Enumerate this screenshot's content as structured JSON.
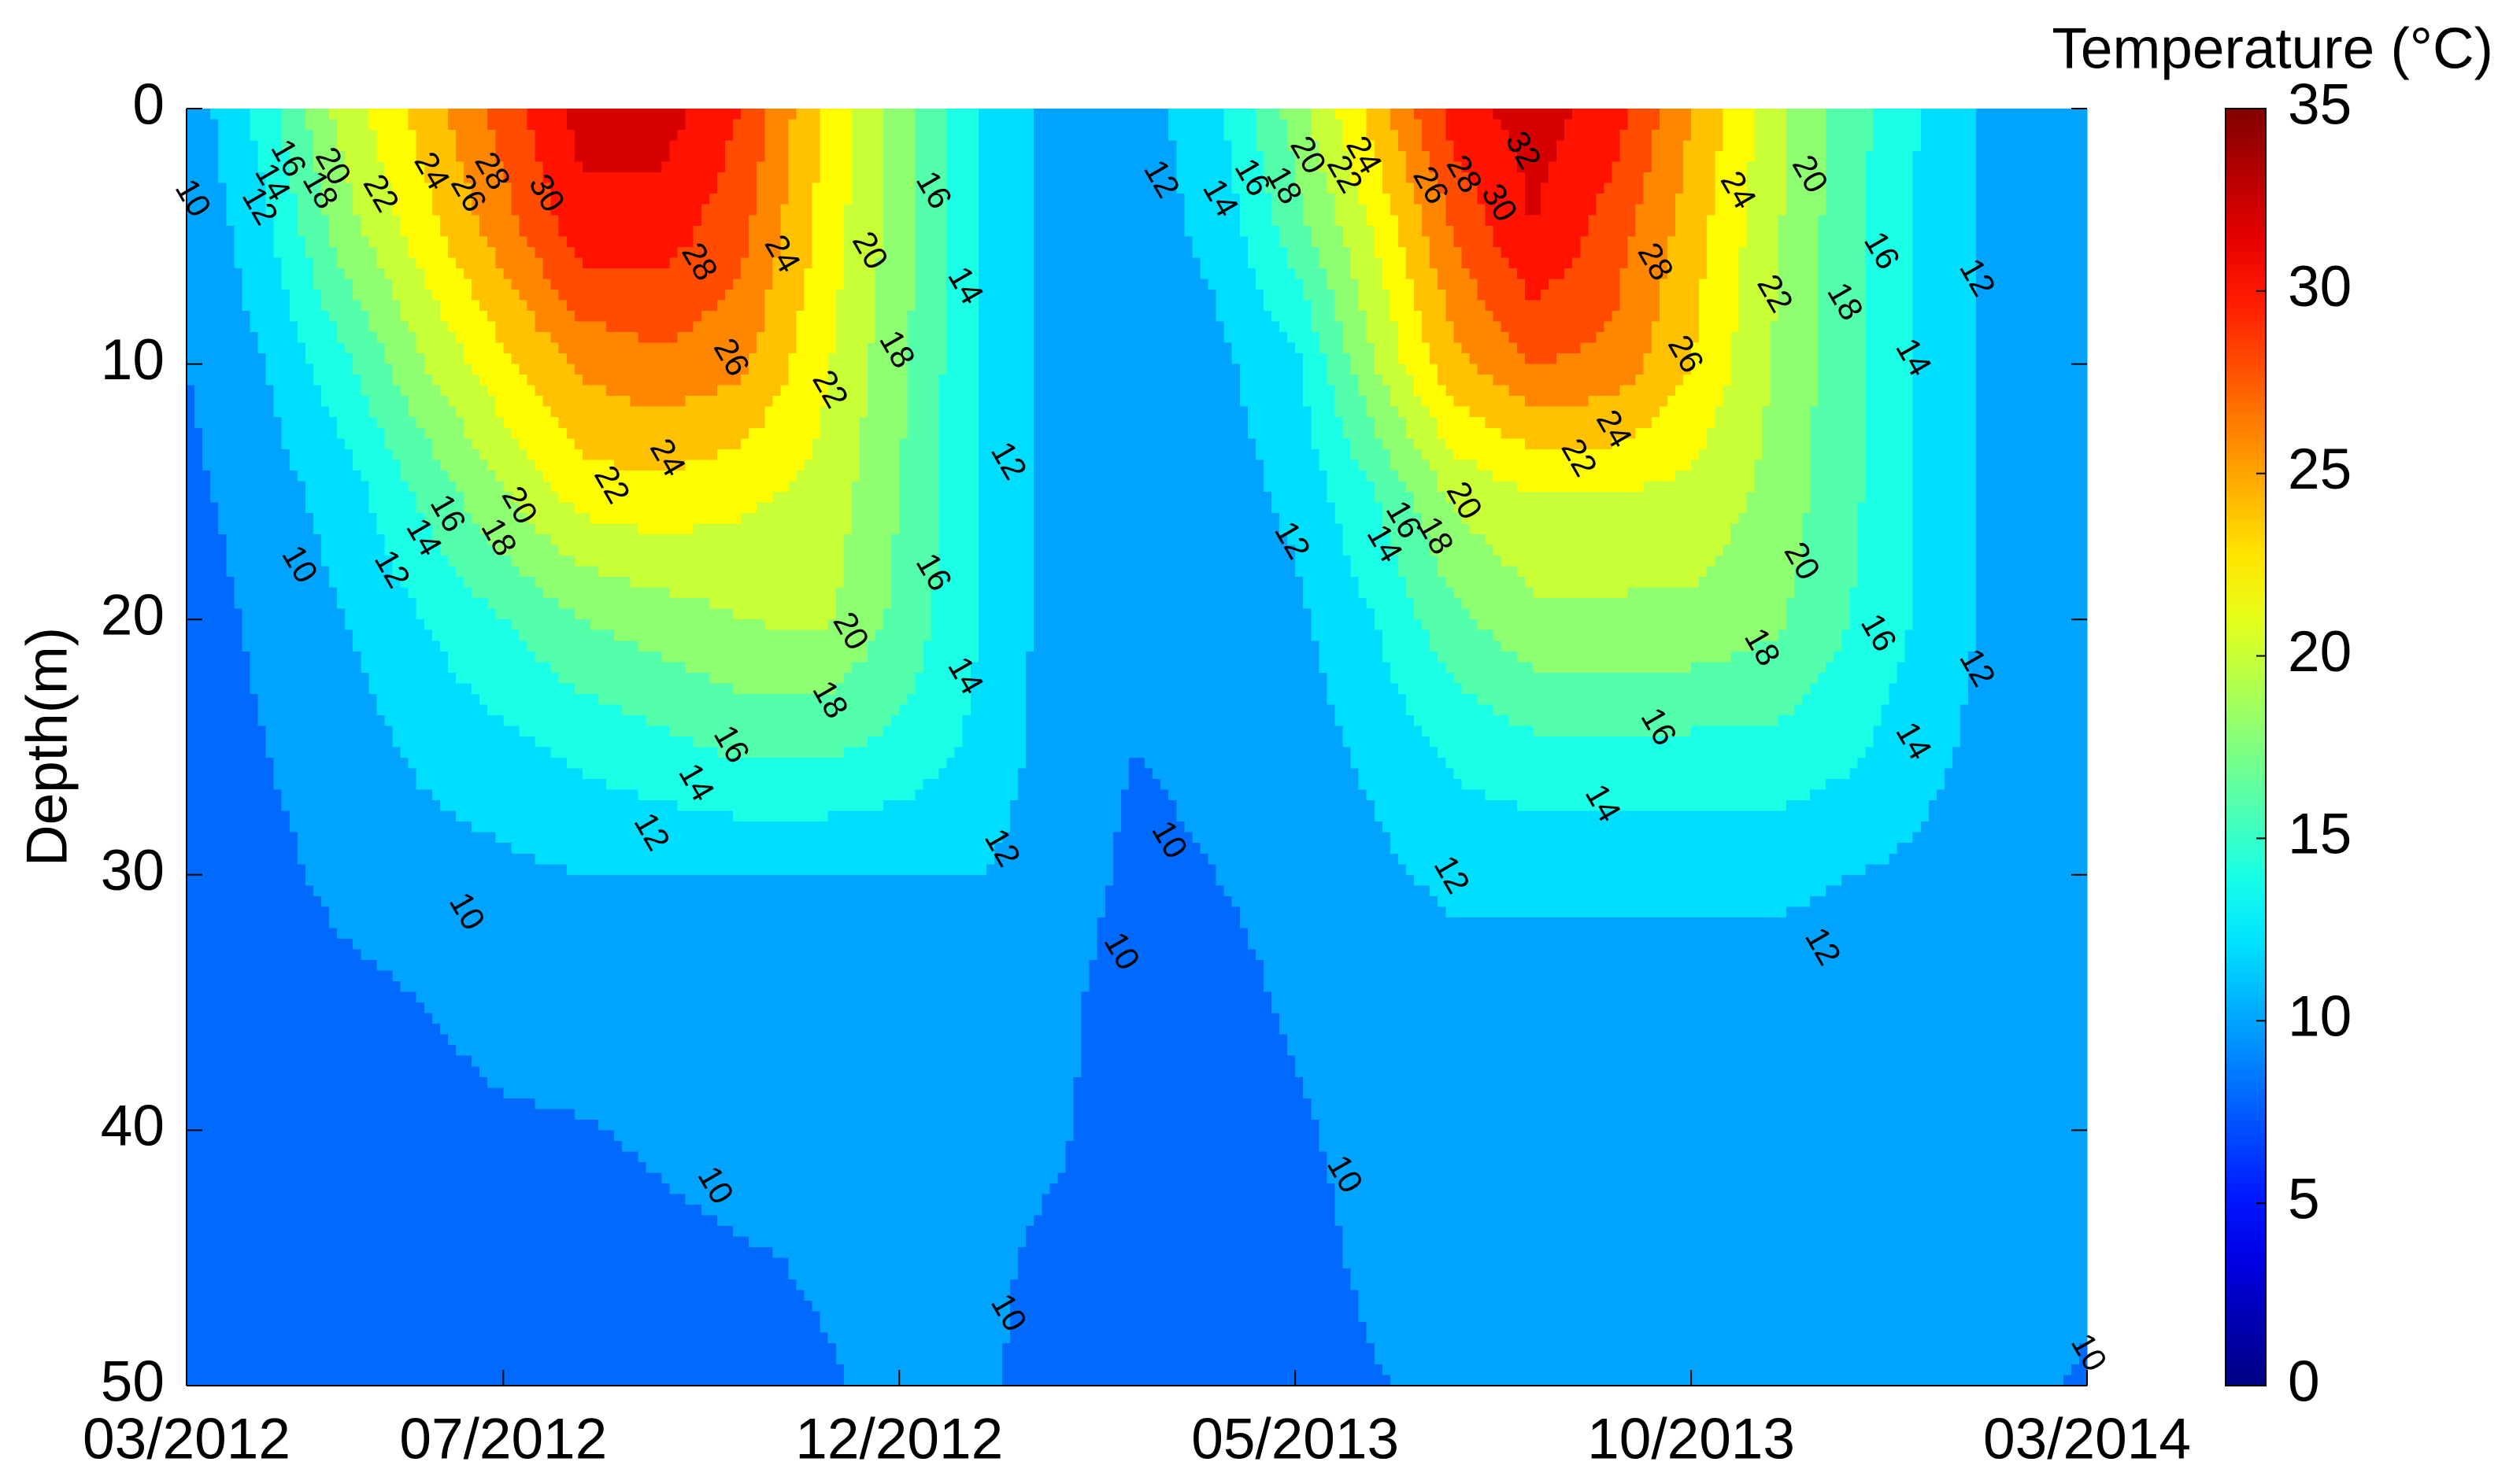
{
  "chart_data": {
    "type": "contourf",
    "colorbar_label": "Temperature (°C)",
    "ylabel": "Depth(m)",
    "x": [
      0,
      1,
      2,
      3,
      4,
      5,
      6,
      7,
      8,
      9,
      10,
      11,
      12,
      13,
      14,
      15,
      16,
      17,
      18,
      19,
      20,
      21,
      22,
      23,
      24
    ],
    "y": [
      0,
      5,
      10,
      15,
      20,
      25,
      30,
      35,
      40,
      45,
      50
    ],
    "z": [
      [
        10.5,
        15,
        21,
        25,
        29,
        33,
        33,
        30,
        24,
        19,
        14,
        11,
        11,
        13.5,
        19,
        25,
        31,
        33,
        31,
        26,
        21,
        17,
        13.5,
        11,
        11
      ],
      [
        10,
        13.5,
        19,
        23,
        27,
        31,
        31,
        28.5,
        23.5,
        19,
        14,
        11,
        11,
        12.5,
        17,
        22,
        28,
        32,
        29,
        25,
        20.5,
        16.5,
        13.5,
        11,
        11
      ],
      [
        10,
        12,
        15.5,
        20,
        23.5,
        26.5,
        27.5,
        26.5,
        22.5,
        18.5,
        14,
        11,
        11,
        11.5,
        13.5,
        20,
        25.5,
        28,
        27.5,
        24,
        20,
        16.5,
        13.5,
        11,
        11
      ],
      [
        9.5,
        11,
        13,
        16.5,
        20,
        23,
        23.5,
        22.5,
        21.5,
        18,
        14,
        11,
        10.5,
        11,
        12.5,
        16,
        20.5,
        22,
        22,
        21.5,
        19.5,
        16.5,
        13.5,
        11,
        11
      ],
      [
        9,
        10.5,
        12,
        14,
        16,
        18,
        19,
        20,
        20.5,
        17.5,
        14,
        11,
        10.5,
        10.5,
        11.5,
        14,
        17.5,
        19.5,
        19.5,
        19.5,
        18.5,
        16,
        13.5,
        11,
        11
      ],
      [
        8.5,
        10,
        11,
        12.5,
        13.5,
        14.5,
        15.5,
        16.5,
        16.5,
        15.5,
        13.5,
        11,
        10,
        10.5,
        11,
        12.5,
        14.5,
        15.5,
        15.5,
        15.5,
        15.5,
        14.5,
        12.5,
        11,
        11
      ],
      [
        8.5,
        9.5,
        10.5,
        11,
        11.5,
        12,
        12,
        12,
        12,
        12,
        12,
        11,
        9.5,
        10,
        10.5,
        11.5,
        12.5,
        12.5,
        12.5,
        12.5,
        12.5,
        12,
        11.5,
        10.8,
        10.8
      ],
      [
        8,
        9,
        9.5,
        10,
        10.5,
        10.8,
        10.8,
        10.8,
        10.8,
        10.8,
        10.8,
        10.5,
        9,
        9.5,
        10.2,
        10.8,
        11,
        11,
        11,
        11,
        11,
        11,
        10.8,
        10.5,
        10.5
      ],
      [
        8,
        8.5,
        9,
        9.5,
        9.8,
        9.9,
        10.2,
        10.5,
        10.5,
        10.5,
        10.5,
        10.2,
        9,
        9.2,
        9.8,
        10.5,
        10.8,
        10.8,
        10.8,
        10.8,
        10.8,
        10.8,
        10.5,
        10.5,
        10.3
      ],
      [
        8,
        8.5,
        8.8,
        9,
        9.3,
        9.5,
        9.7,
        9.9,
        10.1,
        10.3,
        10.3,
        9.7,
        9,
        9,
        9.5,
        10.3,
        10.5,
        10.5,
        10.5,
        10.5,
        10.5,
        10.5,
        10.5,
        10.3,
        10.2
      ],
      [
        8,
        8.3,
        8.5,
        8.8,
        9,
        9.2,
        9.4,
        9.6,
        9.9,
        10.2,
        10.2,
        9.5,
        8.8,
        8.8,
        9.2,
        9.9,
        10.4,
        10.4,
        10.4,
        10.4,
        10.4,
        10.4,
        10.4,
        10.2,
        9.9
      ]
    ],
    "xlim": [
      0,
      24
    ],
    "xticks": [
      {
        "value": 0,
        "label": "03/2012"
      },
      {
        "value": 4,
        "label": "07/2012"
      },
      {
        "value": 9,
        "label": "12/2012"
      },
      {
        "value": 14,
        "label": "05/2013"
      },
      {
        "value": 19,
        "label": "10/2013"
      },
      {
        "value": 24,
        "label": "03/2014"
      }
    ],
    "ylim": [
      0,
      50
    ],
    "yticks": [
      0,
      10,
      20,
      30,
      40,
      50
    ],
    "y_reversed": true,
    "levels": [
      10,
      12,
      14,
      16,
      18,
      20,
      22,
      24,
      26,
      28,
      30,
      32
    ],
    "colormap": "jet",
    "clim": [
      0,
      35
    ],
    "cticks": [
      0,
      5,
      10,
      15,
      20,
      25,
      30,
      35
    ],
    "contour_labels": [
      10,
      12,
      14,
      16,
      18,
      20,
      22,
      24,
      26,
      28,
      30,
      28,
      24,
      26,
      20,
      22,
      18,
      16,
      14,
      12,
      24,
      22,
      20,
      18,
      16,
      14,
      12,
      10,
      20,
      18,
      16,
      14,
      16,
      14,
      12,
      12,
      10,
      10,
      10,
      12,
      14,
      16,
      18,
      20,
      22,
      24,
      26,
      28,
      30,
      32,
      28,
      24,
      20,
      22,
      18,
      16,
      12,
      14,
      26,
      24,
      22,
      20,
      18,
      16,
      14,
      12,
      20,
      18,
      16,
      12,
      16,
      14,
      14,
      12,
      12,
      10,
      10,
      10,
      10
    ]
  }
}
